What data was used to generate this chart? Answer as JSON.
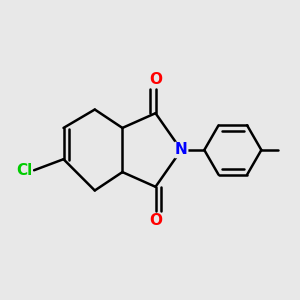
{
  "background_color": "#e8e8e8",
  "bond_color": "#000000",
  "N_color": "#0000ff",
  "O_color": "#ff0000",
  "Cl_color": "#00cc00",
  "bond_width": 1.8,
  "figsize": [
    3.0,
    3.0
  ],
  "dpi": 100,
  "xlim": [
    -0.55,
    1.05
  ],
  "ylim": [
    0.05,
    0.95
  ]
}
